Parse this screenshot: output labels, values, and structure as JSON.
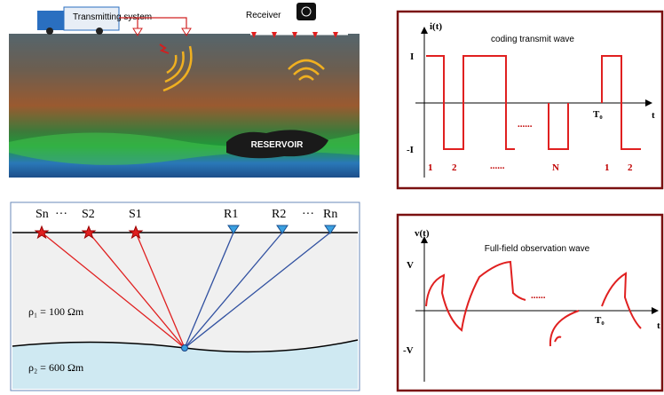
{
  "transmit_panel": {
    "transmitter": "Transmitting system",
    "receiver": "Receiver",
    "reservoir": "RESERVOIR"
  },
  "coding_wave": {
    "y_axis": "i(t)",
    "title": "coding transmit wave",
    "high": "I",
    "low": "-I",
    "period": "T₀",
    "x_axis": "t",
    "gap": "......",
    "pulse_labels": [
      "1",
      "2",
      "......",
      "N",
      "1",
      "2"
    ]
  },
  "model": {
    "sources": [
      "Sn",
      "···",
      "S2",
      "S1"
    ],
    "receivers": [
      "R1",
      "R2",
      "···",
      "Rn"
    ],
    "layers": [
      "ρ₁ = 100 Ωm",
      "ρ₂ = 600 Ωm"
    ]
  },
  "observed_wave": {
    "y_axis": "v(t)",
    "title": "Full-field observation wave",
    "high": "V",
    "low": "-V",
    "period": "T₀",
    "x_axis": "t",
    "gap": "......"
  }
}
